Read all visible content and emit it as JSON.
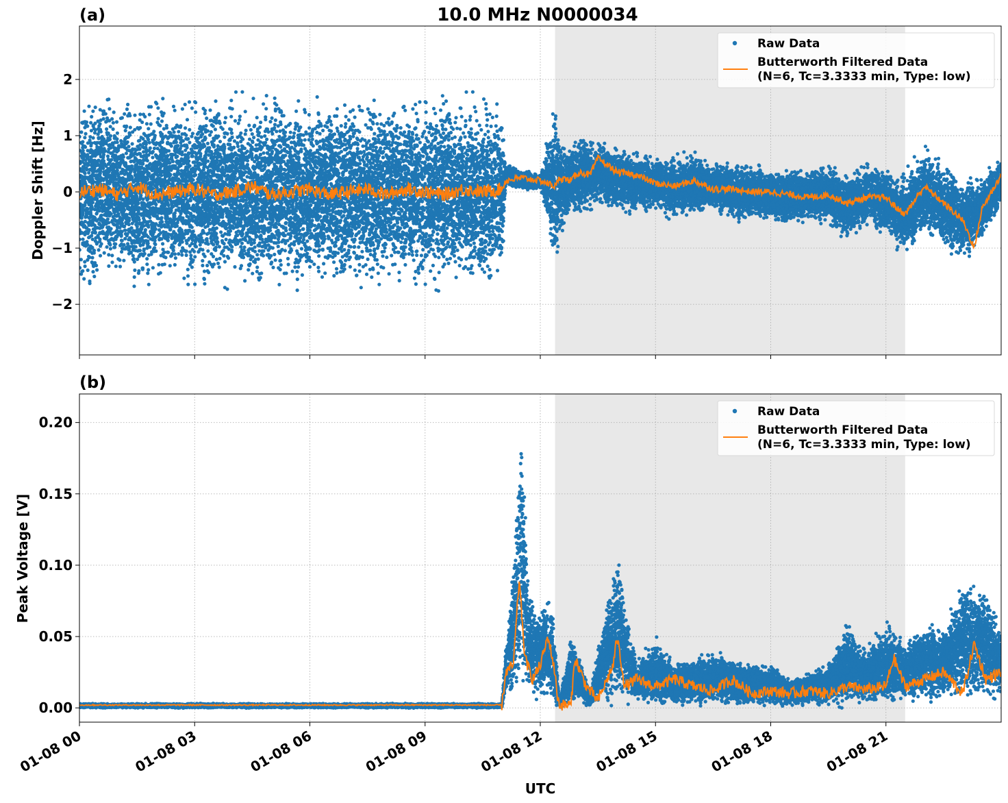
{
  "figure": {
    "title": "10.0 MHz N0000034",
    "xlabel": "UTC",
    "shaded_span": [
      "01-08 12:23",
      "01-08 21:30"
    ],
    "colors": {
      "raw": "#1f77b4",
      "filtered": "#ff7f0e",
      "shade": "#e8e8e8"
    }
  },
  "chart_data": [
    {
      "type": "scatter",
      "panel_label": "(a)",
      "ylabel": "Doppler Shift [Hz]",
      "ylim": [
        -2.9,
        2.95
      ],
      "yticks": [
        -2,
        -1,
        0,
        1,
        2
      ],
      "ytick_labels": [
        "−2",
        "−1",
        "0",
        "1",
        "2"
      ],
      "xlim_hours": [
        0,
        24
      ],
      "xticks_hours": [
        0,
        3,
        6,
        9,
        12,
        15,
        18,
        21
      ],
      "xtick_labels": [
        "01-08 00",
        "01-08 03",
        "01-08 06",
        "01-08 09",
        "01-08 12",
        "01-08 15",
        "01-08 18",
        "01-08 21"
      ],
      "grid": true,
      "legend_position": "top-right",
      "series": [
        {
          "name": "Raw Data",
          "kind": "points",
          "x_hours": [
            0.0,
            0.5,
            1.0,
            1.5,
            2.0,
            2.5,
            3.0,
            3.5,
            4.0,
            4.5,
            5.0,
            5.5,
            6.0,
            6.5,
            7.0,
            7.5,
            8.0,
            8.5,
            9.0,
            9.5,
            10.0,
            10.5,
            11.0,
            11.1,
            11.5,
            12.0,
            12.4,
            12.5,
            12.8,
            13.0,
            13.5,
            14.0,
            14.5,
            15.0,
            15.5,
            16.0,
            16.5,
            17.0,
            17.5,
            18.0,
            18.5,
            19.0,
            19.5,
            20.0,
            20.5,
            21.0,
            21.5,
            22.0,
            22.5,
            23.0,
            23.5,
            24.0
          ],
          "y_low": [
            -1.7,
            -1.6,
            -1.6,
            -1.7,
            -1.6,
            -1.6,
            -1.7,
            -1.6,
            -1.6,
            -1.7,
            -1.6,
            -1.6,
            -1.7,
            -1.6,
            -1.6,
            -1.7,
            -1.6,
            -1.6,
            -1.7,
            -1.6,
            -1.6,
            -1.7,
            -1.5,
            0.1,
            0.05,
            0.05,
            -1.4,
            -0.9,
            -0.3,
            -0.5,
            -0.2,
            -0.4,
            -0.4,
            -0.3,
            -0.5,
            -0.4,
            -0.3,
            -0.5,
            -0.5,
            -0.5,
            -0.6,
            -0.5,
            -0.6,
            -0.9,
            -0.6,
            -0.7,
            -1.2,
            -0.7,
            -1.0,
            -1.2,
            -0.9,
            -0.2
          ],
          "y_high": [
            1.6,
            1.7,
            1.6,
            1.6,
            1.7,
            1.6,
            1.6,
            1.7,
            1.6,
            1.6,
            1.7,
            1.6,
            1.6,
            1.7,
            1.6,
            1.6,
            1.7,
            1.6,
            1.6,
            1.7,
            1.6,
            1.6,
            1.5,
            0.5,
            0.4,
            0.3,
            1.7,
            1.0,
            0.8,
            1.0,
            0.9,
            0.8,
            0.7,
            0.6,
            0.6,
            0.7,
            0.5,
            0.5,
            0.5,
            0.4,
            0.4,
            0.4,
            0.5,
            0.3,
            0.5,
            0.4,
            0.3,
            0.8,
            0.5,
            0.2,
            0.3,
            0.6
          ],
          "color": "#1f77b4"
        },
        {
          "name": "Butterworth Filtered Data\n(N=6, Tc=3.3333 min, Type: low)",
          "kind": "line",
          "x_hours": [
            0.0,
            0.5,
            1.0,
            1.5,
            2.0,
            2.5,
            3.0,
            3.5,
            4.0,
            4.5,
            5.0,
            5.5,
            6.0,
            6.5,
            7.0,
            7.5,
            8.0,
            8.5,
            9.0,
            9.5,
            10.0,
            10.5,
            11.0,
            11.1,
            11.5,
            12.0,
            12.4,
            12.5,
            12.8,
            13.0,
            13.3,
            13.5,
            14.0,
            14.5,
            15.0,
            15.5,
            16.0,
            16.5,
            17.0,
            17.5,
            18.0,
            18.5,
            19.0,
            19.5,
            20.0,
            20.5,
            21.0,
            21.3,
            21.5,
            22.0,
            22.5,
            23.0,
            23.3,
            23.5,
            24.0
          ],
          "y": [
            0.0,
            0.05,
            -0.05,
            0.1,
            -0.05,
            0.0,
            0.05,
            -0.05,
            0.0,
            0.1,
            -0.05,
            0.0,
            0.05,
            -0.05,
            0.0,
            0.05,
            -0.05,
            0.05,
            0.0,
            -0.05,
            0.05,
            0.0,
            0.05,
            0.2,
            0.25,
            0.2,
            0.1,
            0.25,
            0.2,
            0.35,
            0.3,
            0.6,
            0.35,
            0.3,
            0.15,
            0.1,
            0.2,
            0.05,
            0.05,
            0.0,
            0.0,
            -0.05,
            -0.1,
            -0.05,
            -0.2,
            -0.1,
            -0.1,
            -0.3,
            -0.4,
            0.1,
            -0.2,
            -0.5,
            -1.0,
            -0.3,
            0.3
          ],
          "color": "#ff7f0e"
        }
      ]
    },
    {
      "type": "scatter",
      "panel_label": "(b)",
      "ylabel": "Peak Voltage [V]",
      "ylim": [
        -0.01,
        0.22
      ],
      "yticks": [
        0.0,
        0.05,
        0.1,
        0.15,
        0.2
      ],
      "ytick_labels": [
        "0.00",
        "0.05",
        "0.10",
        "0.15",
        "0.20"
      ],
      "xlim_hours": [
        0,
        24
      ],
      "xticks_hours": [
        0,
        3,
        6,
        9,
        12,
        15,
        18,
        21
      ],
      "xtick_labels": [
        "01-08 00",
        "01-08 03",
        "01-08 06",
        "01-08 09",
        "01-08 12",
        "01-08 15",
        "01-08 18",
        "01-08 21"
      ],
      "grid": true,
      "legend_position": "top-right",
      "series": [
        {
          "name": "Raw Data",
          "kind": "points",
          "x_hours": [
            0.0,
            1.0,
            2.0,
            3.0,
            4.0,
            5.0,
            6.0,
            7.0,
            8.0,
            9.0,
            10.0,
            11.0,
            11.1,
            11.3,
            11.5,
            11.7,
            12.0,
            12.3,
            12.5,
            12.8,
            13.0,
            13.3,
            13.5,
            14.0,
            14.5,
            15.0,
            15.5,
            16.0,
            16.5,
            17.0,
            17.5,
            18.0,
            18.5,
            19.0,
            19.5,
            20.0,
            20.5,
            21.0,
            21.5,
            22.0,
            22.5,
            23.0,
            23.5,
            24.0
          ],
          "y_low": [
            0.0,
            0.0,
            0.0,
            0.0,
            0.0,
            0.0,
            0.0,
            0.0,
            0.0,
            0.0,
            0.0,
            0.0,
            0.008,
            0.01,
            0.015,
            0.01,
            0.005,
            0.005,
            0.0,
            0.001,
            0.005,
            0.0,
            0.005,
            0.005,
            0.004,
            0.002,
            0.002,
            0.003,
            0.002,
            0.002,
            0.002,
            0.002,
            0.001,
            0.002,
            0.002,
            0.002,
            0.003,
            0.003,
            0.005,
            0.006,
            0.006,
            0.007,
            0.005,
            0.008
          ],
          "y_high": [
            0.003,
            0.003,
            0.003,
            0.003,
            0.003,
            0.003,
            0.003,
            0.003,
            0.003,
            0.003,
            0.003,
            0.003,
            0.045,
            0.1,
            0.21,
            0.08,
            0.07,
            0.08,
            0.005,
            0.05,
            0.04,
            0.01,
            0.04,
            0.11,
            0.03,
            0.05,
            0.03,
            0.035,
            0.04,
            0.035,
            0.03,
            0.03,
            0.02,
            0.025,
            0.03,
            0.06,
            0.04,
            0.06,
            0.045,
            0.06,
            0.055,
            0.09,
            0.085,
            0.06
          ],
          "color": "#1f77b4"
        },
        {
          "name": "Butterworth Filtered Data\n(N=6, Tc=3.3333 min, Type: low)",
          "kind": "line",
          "x_hours": [
            0.0,
            2.0,
            4.0,
            6.0,
            8.0,
            10.0,
            11.0,
            11.1,
            11.3,
            11.45,
            11.6,
            11.8,
            12.0,
            12.2,
            12.35,
            12.45,
            12.5,
            12.8,
            12.9,
            13.2,
            13.5,
            13.9,
            14.0,
            14.2,
            14.5,
            15.0,
            15.5,
            16.0,
            16.5,
            17.0,
            17.5,
            18.0,
            18.5,
            19.0,
            19.5,
            20.0,
            20.5,
            21.0,
            21.2,
            21.5,
            22.0,
            22.5,
            23.0,
            23.3,
            23.6,
            24.0
          ],
          "y": [
            0.002,
            0.002,
            0.002,
            0.002,
            0.002,
            0.002,
            0.002,
            0.025,
            0.03,
            0.09,
            0.035,
            0.02,
            0.03,
            0.05,
            0.03,
            0.008,
            0.002,
            0.002,
            0.035,
            0.015,
            0.005,
            0.03,
            0.05,
            0.015,
            0.02,
            0.015,
            0.02,
            0.015,
            0.012,
            0.02,
            0.01,
            0.012,
            0.01,
            0.012,
            0.01,
            0.015,
            0.013,
            0.015,
            0.035,
            0.015,
            0.02,
            0.025,
            0.01,
            0.045,
            0.02,
            0.025
          ],
          "color": "#ff7f0e"
        }
      ]
    }
  ]
}
